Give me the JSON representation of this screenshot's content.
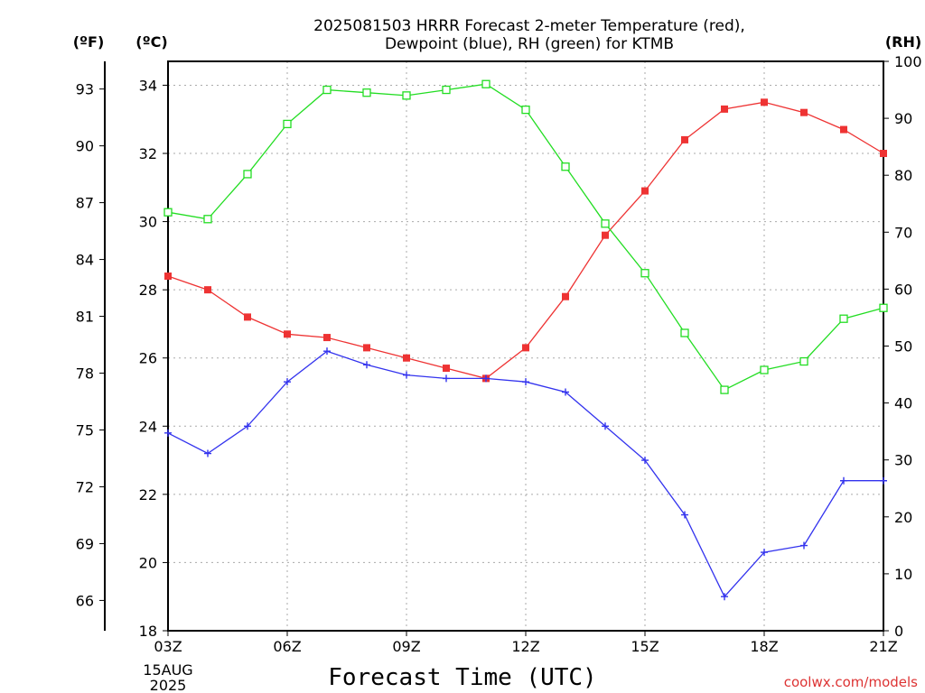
{
  "chart_data": {
    "type": "line",
    "title_line1": "2025081503 HRRR Forecast 2-meter Temperature (red),",
    "title_line2": "Dewpoint (blue), RH (green) for KTMB",
    "xlabel": "Forecast Time (UTC)",
    "x_tick_labels": [
      "03Z",
      "06Z",
      "09Z",
      "12Z",
      "15Z",
      "18Z",
      "21Z"
    ],
    "date_label_day": "15AUG",
    "date_label_year": "2025",
    "x_hours": [
      3,
      4,
      5,
      6,
      7,
      8,
      9,
      10,
      11,
      12,
      13,
      14,
      15,
      16,
      17,
      18,
      19,
      20,
      21
    ],
    "xlim": [
      3,
      21
    ],
    "left_axis_c": {
      "unit_label": "(ºC)",
      "ticks": [
        "18",
        "20",
        "22",
        "24",
        "26",
        "28",
        "30",
        "32",
        "34"
      ],
      "ylim": [
        18,
        34.7
      ]
    },
    "left_axis_f": {
      "unit_label": "(ºF)",
      "ticks": [
        "66",
        "69",
        "72",
        "75",
        "78",
        "81",
        "84",
        "87",
        "90",
        "93"
      ]
    },
    "right_axis_rh": {
      "unit_label": "(RH)",
      "ticks": [
        "0",
        "10",
        "20",
        "30",
        "40",
        "50",
        "60",
        "70",
        "80",
        "90",
        "100"
      ],
      "ylim": [
        0,
        100
      ]
    },
    "grid": true,
    "series": [
      {
        "key": "temperature",
        "color": "#ee3333",
        "marker": "filled-square",
        "axis": "celsius",
        "values": [
          28.4,
          28.0,
          27.2,
          26.7,
          26.6,
          26.3,
          26.0,
          25.7,
          25.4,
          26.3,
          27.8,
          29.6,
          30.9,
          32.4,
          33.3,
          33.5,
          33.2,
          32.7,
          32.0
        ]
      },
      {
        "key": "dewpoint",
        "color": "#3333ee",
        "marker": "plus",
        "axis": "celsius",
        "values": [
          23.8,
          23.2,
          24.0,
          25.3,
          26.2,
          25.8,
          25.5,
          25.4,
          25.4,
          25.3,
          25.0,
          24.0,
          23.0,
          21.4,
          19.0,
          20.3,
          20.5,
          22.4,
          22.4
        ]
      },
      {
        "key": "relative_humidity",
        "color": "#22dd22",
        "marker": "open-square",
        "axis": "rh",
        "values": [
          73.5,
          72.3,
          80.2,
          89.0,
          95.0,
          94.5,
          94.0,
          95.0,
          96.0,
          91.5,
          81.5,
          71.5,
          62.8,
          52.3,
          42.3,
          45.8,
          47.3,
          54.8,
          56.7
        ]
      }
    ]
  },
  "watermark": "coolwx.com/models"
}
